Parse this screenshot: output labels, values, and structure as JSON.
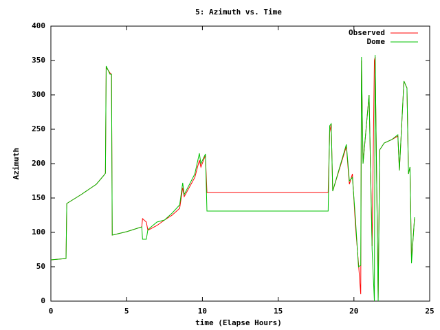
{
  "chart_data": {
    "type": "line",
    "title": "5: Azimuth vs. Time",
    "x_label": "time (Elapse Hours)",
    "y_label": "Azimuth",
    "x": [
      0,
      1.0,
      1.05,
      2,
      3,
      3.5,
      3.6,
      3.65,
      3.9,
      4.0,
      4.05,
      5,
      6,
      6.05,
      6.3,
      6.4,
      7,
      7.5,
      8,
      8.5,
      8.7,
      8.8,
      9.5,
      9.8,
      9.9,
      10.2,
      10.3,
      18.3,
      18.4,
      18.5,
      18.6,
      19.5,
      19.7,
      19.9,
      20.1,
      20.3,
      20.45,
      20.5,
      20.6,
      21.0,
      21.2,
      21.35,
      21.4,
      21.6,
      21.7,
      22.0,
      22.5,
      22.9,
      23.0,
      23.3,
      23.5,
      23.6,
      23.7,
      23.8,
      24.0
    ],
    "series": [
      {
        "name": "Observed",
        "color": "#ff0000",
        "values": [
          60,
          62,
          142,
          155,
          170,
          183,
          186,
          340,
          332,
          330,
          96,
          101,
          108,
          120,
          115,
          103,
          110,
          118,
          125,
          135,
          165,
          152,
          180,
          205,
          195,
          212,
          158,
          158,
          245,
          258,
          160,
          225,
          170,
          185,
          110,
          55,
          10,
          350,
          200,
          300,
          80,
          350,
          355,
          5,
          220,
          230,
          235,
          240,
          190,
          320,
          310,
          185,
          195,
          60,
          120
        ]
      },
      {
        "name": "Dome",
        "color": "#00c000",
        "values": [
          60,
          62,
          142,
          155,
          170,
          183,
          186,
          342,
          330,
          330,
          96,
          101,
          108,
          90,
          90,
          104,
          115,
          118,
          128,
          140,
          172,
          155,
          185,
          215,
          200,
          214,
          131,
          131,
          255,
          258,
          160,
          228,
          175,
          180,
          120,
          50,
          52,
          355,
          200,
          300,
          75,
          0,
          358,
          0,
          220,
          230,
          235,
          242,
          190,
          320,
          310,
          185,
          195,
          55,
          122
        ]
      }
    ],
    "xlim": [
      0,
      25
    ],
    "xticks": [
      0,
      5,
      10,
      15,
      20,
      25
    ],
    "ylim": [
      0,
      400
    ],
    "yticks": [
      0,
      50,
      100,
      150,
      200,
      250,
      300,
      350,
      400
    ],
    "grid": false,
    "legend": "top-right"
  }
}
